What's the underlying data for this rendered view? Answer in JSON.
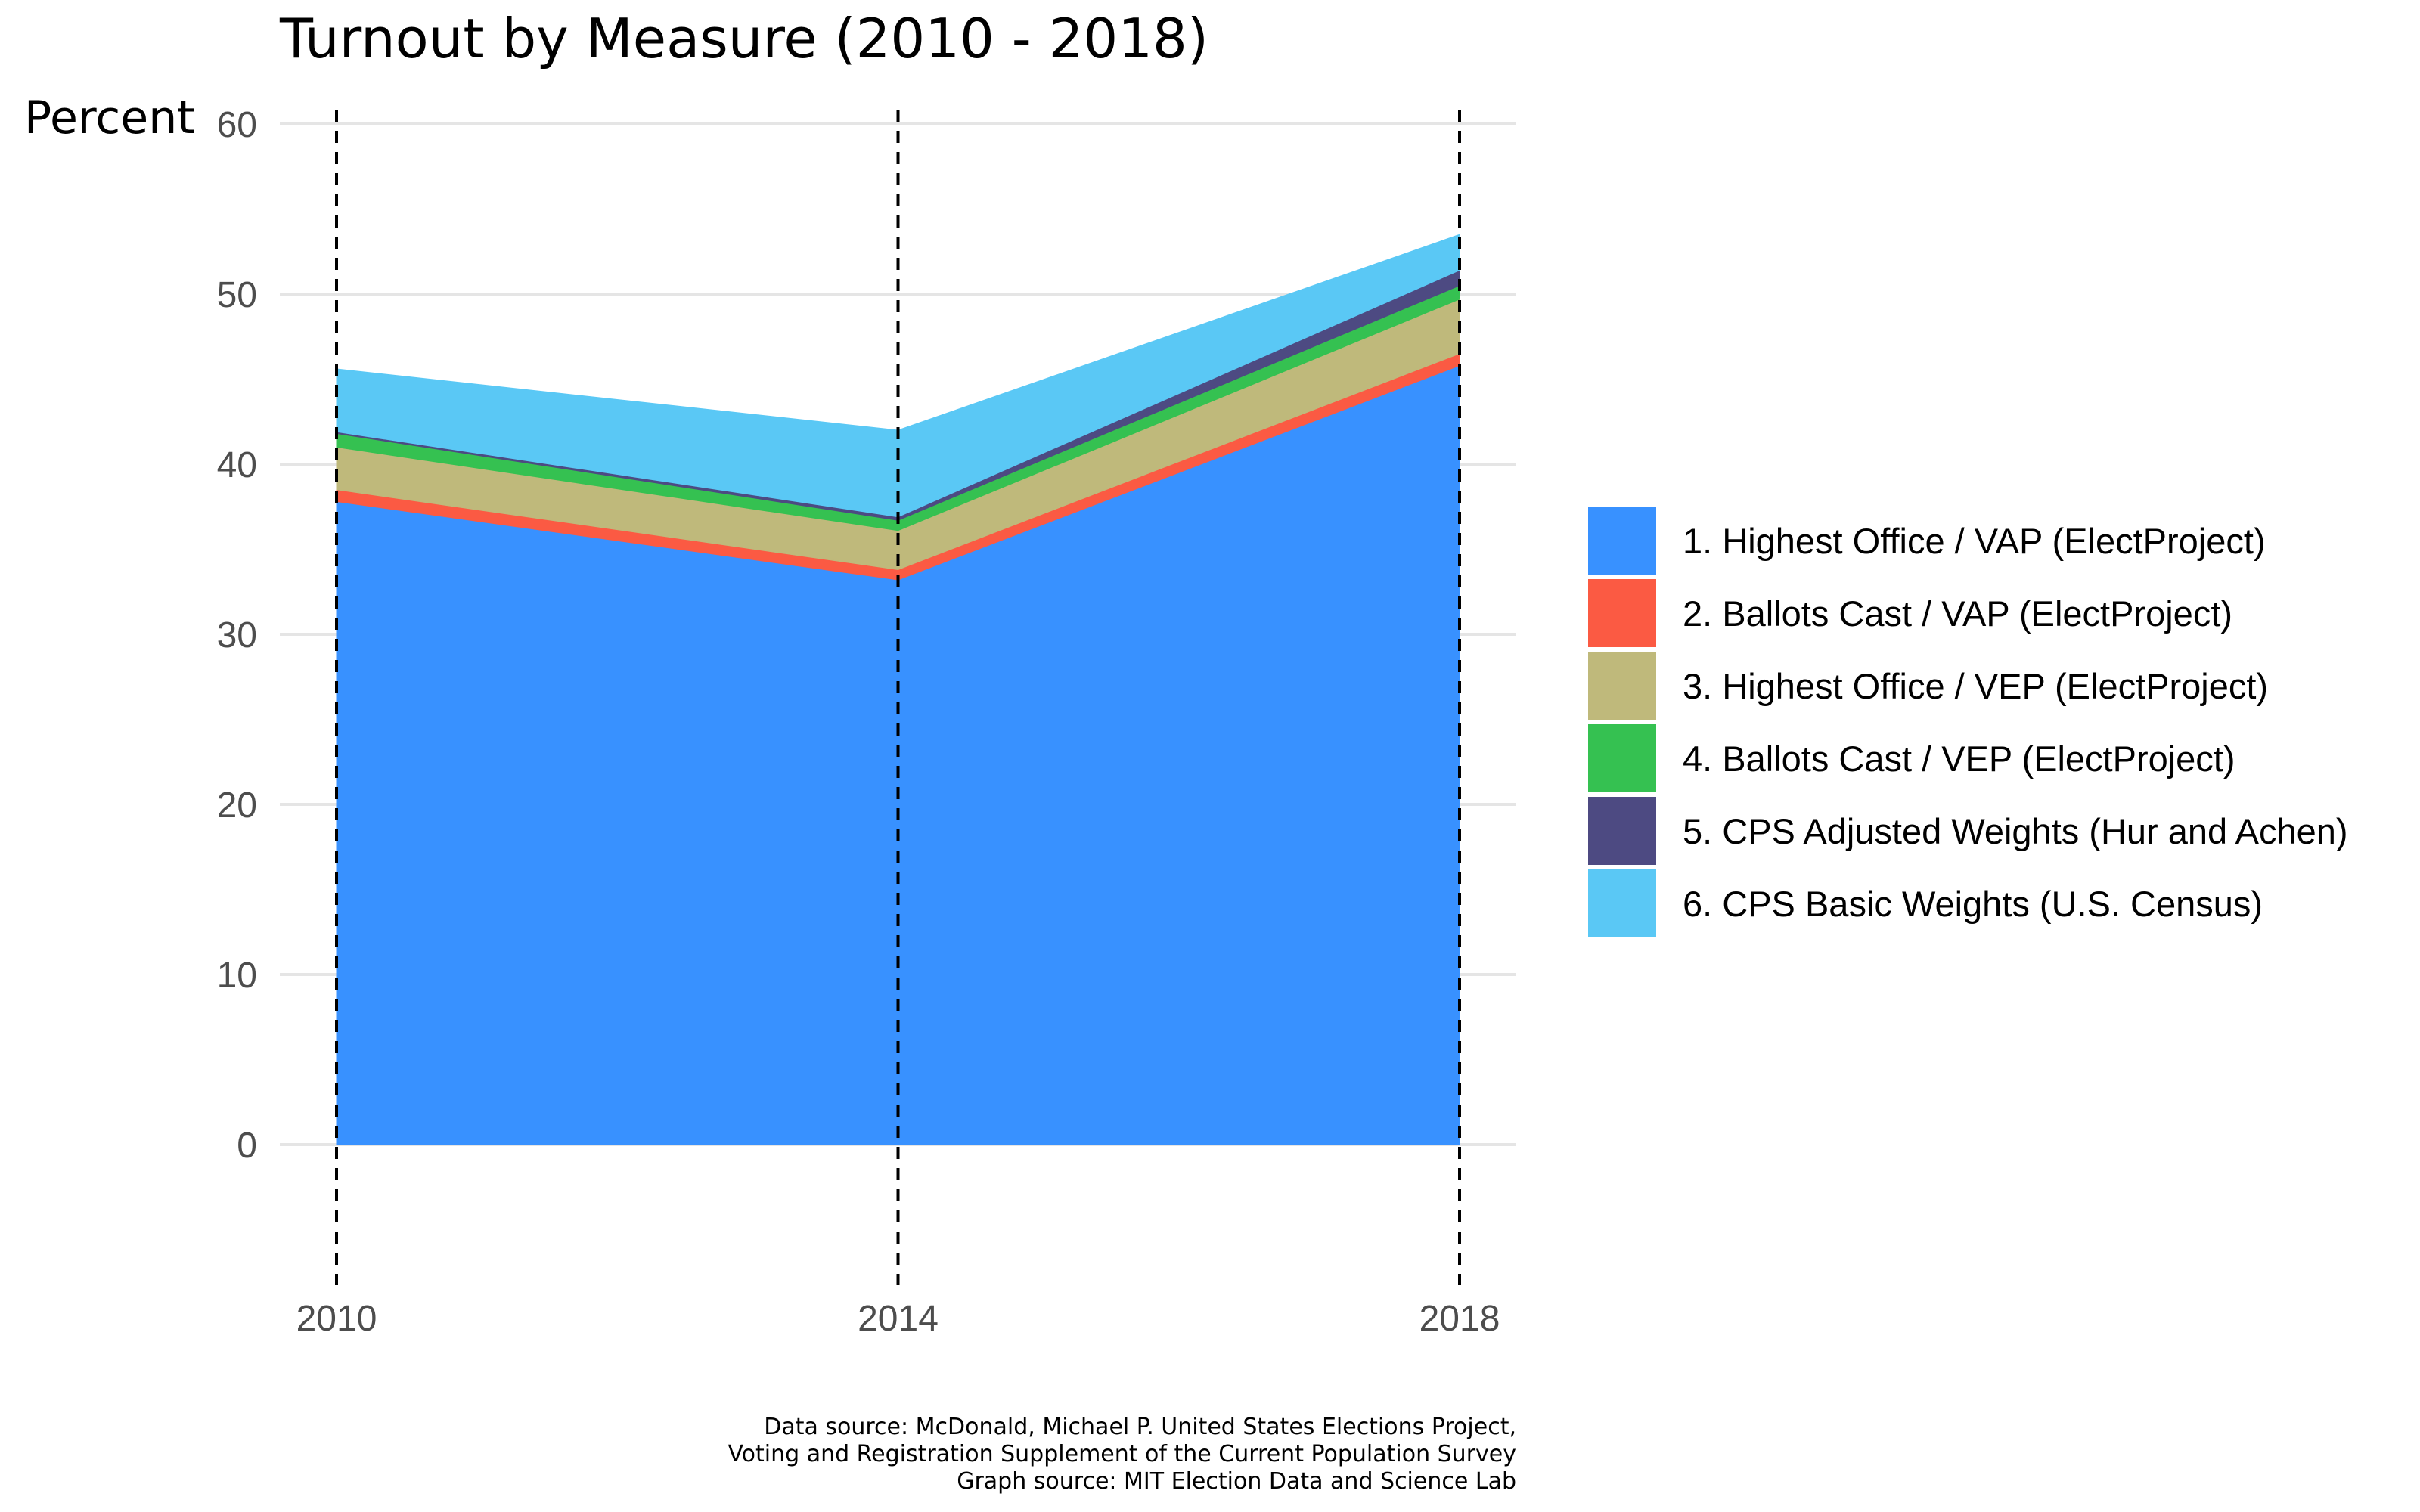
{
  "chart_data": {
    "type": "area",
    "stacked": true,
    "title": "Turnout by Measure (2010 - 2018)",
    "ylabel": "Percent",
    "xlabel": "",
    "x": [
      2010,
      2014,
      2018
    ],
    "x_tick_labels": [
      "2010",
      "2014",
      "2018"
    ],
    "ylim": [
      -8,
      61
    ],
    "y_ticks": [
      0,
      10,
      20,
      30,
      40,
      50,
      60
    ],
    "y_tick_labels": [
      "0",
      "10",
      "20",
      "30",
      "40",
      "50",
      "60"
    ],
    "grid": "horizontal",
    "vertical_reference_lines": [
      2010,
      2014,
      2018
    ],
    "legend_position": "right",
    "series": [
      {
        "name": "1. Highest Office / VAP (ElectProject)",
        "color": "#3891FF",
        "values": [
          37.8,
          33.2,
          45.8
        ]
      },
      {
        "name": "2. Ballots Cast / VAP (ElectProject)",
        "color": "#FB5A43",
        "values": [
          0.7,
          0.6,
          0.7
        ]
      },
      {
        "name": "3. Highest Office / VEP (ElectProject)",
        "color": "#BFB97B",
        "values": [
          2.5,
          2.3,
          3.2
        ]
      },
      {
        "name": "4. Ballots Cast / VEP (ElectProject)",
        "color": "#35C151",
        "values": [
          0.8,
          0.6,
          0.8
        ]
      },
      {
        "name": "5. CPS Adjusted Weights (Hur and Achen)",
        "color": "#4D4A82",
        "values": [
          0.1,
          0.2,
          0.9
        ]
      },
      {
        "name": "6. CPS Basic Weights (U.S. Census)",
        "color": "#5AC8F5",
        "values": [
          3.7,
          5.1,
          2.1
        ]
      }
    ],
    "caption": [
      "Data source:  McDonald, Michael P. United States Elections Project,",
      "Voting and Registration Supplement of the Current Population Survey",
      "Graph source:  MIT Election Data and Science Lab"
    ]
  }
}
